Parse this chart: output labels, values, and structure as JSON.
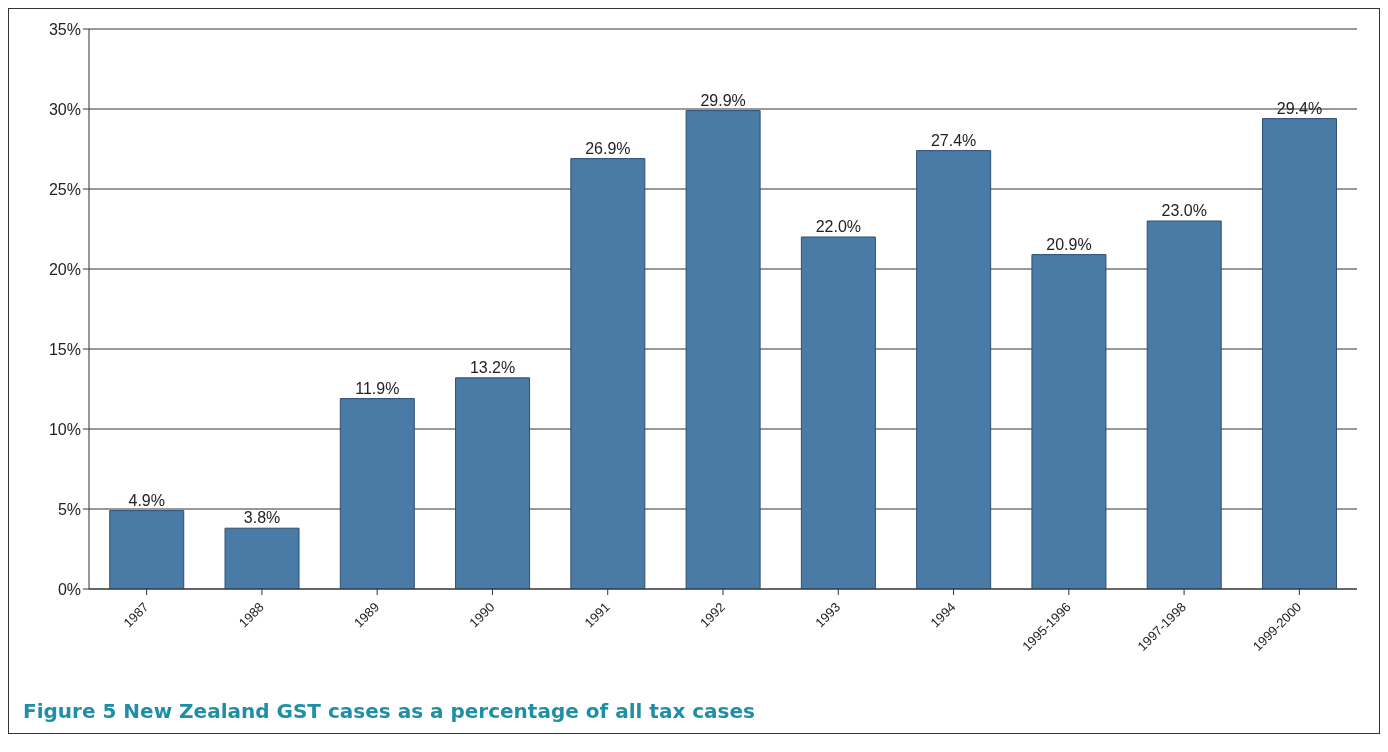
{
  "chart_data": {
    "type": "bar",
    "categories": [
      "1987",
      "1988",
      "1989",
      "1990",
      "1991",
      "1992",
      "1993",
      "1994",
      "1995-1996",
      "1997-1998",
      "1999-2000"
    ],
    "values": [
      4.9,
      3.8,
      11.9,
      13.2,
      26.9,
      29.9,
      22.0,
      27.4,
      20.9,
      23.0,
      29.4
    ],
    "value_labels": [
      "4.9%",
      "3.8%",
      "11.9%",
      "13.2%",
      "26.9%",
      "29.9%",
      "22.0%",
      "27.4%",
      "20.9%",
      "23.0%",
      "29.4%"
    ],
    "color": "#4a7aa6",
    "ylim": [
      0,
      35
    ],
    "yticks": [
      {
        "value": 0,
        "label": "0%"
      },
      {
        "value": 5,
        "label": "5%"
      },
      {
        "value": 10,
        "label": "10%"
      },
      {
        "value": 15,
        "label": "15%"
      },
      {
        "value": 20,
        "label": "20%"
      },
      {
        "value": 25,
        "label": "25%"
      },
      {
        "value": 30,
        "label": "30%"
      },
      {
        "value": 35,
        "label": "35%"
      }
    ],
    "grid": "y",
    "annotations": [
      "Figure 5 New Zealand GST cases as a percentage of all tax cases"
    ]
  }
}
